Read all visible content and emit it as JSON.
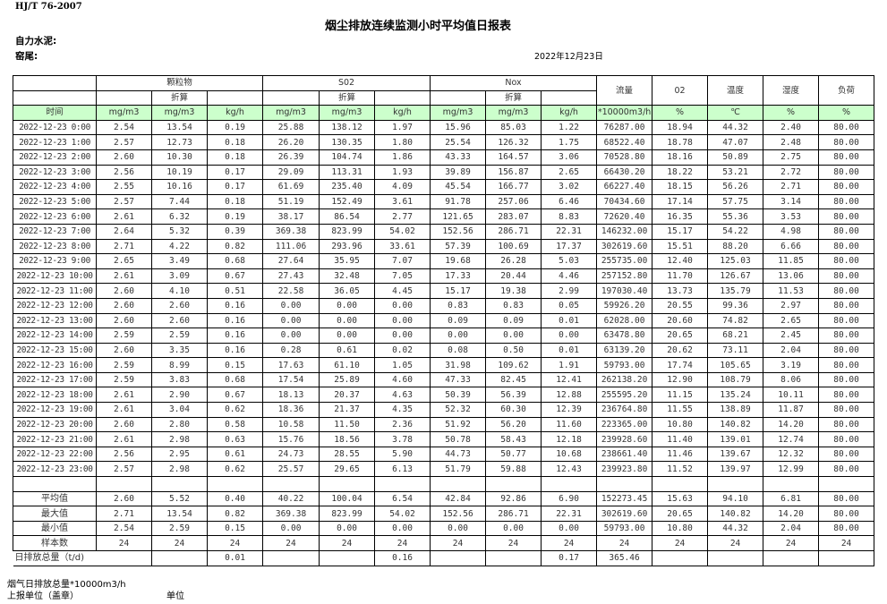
{
  "header": {
    "standard": "HJ/T  76-2007",
    "title": "烟尘排放连续监测小时平均值日报表",
    "company": "自力水泥:",
    "kiln": "窑尾:",
    "date": "2022年12月23日"
  },
  "table": {
    "groups": {
      "particulate": "颗粒物",
      "so2": "S02",
      "nox": "Nox"
    },
    "converted": "折算",
    "single_headers": [
      "流量",
      "02",
      "温度",
      "湿度",
      "负荷"
    ],
    "time_label": "时间",
    "units": [
      "mg/m3",
      "mg/m3",
      "kg/h",
      "mg/m3",
      "mg/m3",
      "kg/h",
      "mg/m3",
      "mg/m3",
      "kg/h",
      "*10000m3/h",
      "%",
      "℃",
      "%",
      "%"
    ],
    "rows": [
      [
        "2022-12-23 0:00",
        "2.54",
        "13.54",
        "0.19",
        "25.88",
        "138.12",
        "1.97",
        "15.96",
        "85.03",
        "1.22",
        "76287.00",
        "18.94",
        "44.32",
        "2.40",
        "80.00"
      ],
      [
        "2022-12-23 1:00",
        "2.57",
        "12.73",
        "0.18",
        "26.20",
        "130.35",
        "1.80",
        "25.54",
        "126.32",
        "1.75",
        "68522.40",
        "18.78",
        "47.07",
        "2.48",
        "80.00"
      ],
      [
        "2022-12-23 2:00",
        "2.60",
        "10.30",
        "0.18",
        "26.39",
        "104.74",
        "1.86",
        "43.33",
        "164.57",
        "3.06",
        "70528.80",
        "18.16",
        "50.89",
        "2.75",
        "80.00"
      ],
      [
        "2022-12-23 3:00",
        "2.56",
        "10.19",
        "0.17",
        "29.09",
        "113.31",
        "1.93",
        "39.89",
        "156.87",
        "2.65",
        "66430.20",
        "18.22",
        "53.21",
        "2.72",
        "80.00"
      ],
      [
        "2022-12-23 4:00",
        "2.55",
        "10.16",
        "0.17",
        "61.69",
        "235.40",
        "4.09",
        "45.54",
        "166.77",
        "3.02",
        "66227.40",
        "18.15",
        "56.26",
        "2.71",
        "80.00"
      ],
      [
        "2022-12-23 5:00",
        "2.57",
        "7.44",
        "0.18",
        "51.19",
        "152.49",
        "3.61",
        "91.78",
        "257.06",
        "6.46",
        "70434.60",
        "17.14",
        "57.75",
        "3.14",
        "80.00"
      ],
      [
        "2022-12-23 6:00",
        "2.61",
        "6.32",
        "0.19",
        "38.17",
        "86.54",
        "2.77",
        "121.65",
        "283.07",
        "8.83",
        "72620.40",
        "16.35",
        "55.36",
        "3.53",
        "80.00"
      ],
      [
        "2022-12-23 7:00",
        "2.64",
        "5.32",
        "0.39",
        "369.38",
        "823.99",
        "54.02",
        "152.56",
        "286.71",
        "22.31",
        "146232.00",
        "15.17",
        "54.22",
        "4.98",
        "80.00"
      ],
      [
        "2022-12-23 8:00",
        "2.71",
        "4.22",
        "0.82",
        "111.06",
        "293.96",
        "33.61",
        "57.39",
        "100.69",
        "17.37",
        "302619.60",
        "15.51",
        "88.20",
        "6.66",
        "80.00"
      ],
      [
        "2022-12-23 9:00",
        "2.65",
        "3.49",
        "0.68",
        "27.64",
        "35.95",
        "7.07",
        "19.68",
        "26.28",
        "5.03",
        "255735.00",
        "12.40",
        "125.03",
        "11.85",
        "80.00"
      ],
      [
        "2022-12-23 10:00",
        "2.61",
        "3.09",
        "0.67",
        "27.43",
        "32.48",
        "7.05",
        "17.33",
        "20.44",
        "4.46",
        "257152.80",
        "11.70",
        "126.67",
        "13.06",
        "80.00"
      ],
      [
        "2022-12-23 11:00",
        "2.60",
        "4.10",
        "0.51",
        "22.58",
        "36.05",
        "4.45",
        "15.17",
        "19.38",
        "2.99",
        "197030.40",
        "13.73",
        "135.79",
        "11.53",
        "80.00"
      ],
      [
        "2022-12-23 12:00",
        "2.60",
        "2.60",
        "0.16",
        "0.00",
        "0.00",
        "0.00",
        "0.83",
        "0.83",
        "0.05",
        "59926.20",
        "20.55",
        "99.36",
        "2.97",
        "80.00"
      ],
      [
        "2022-12-23 13:00",
        "2.60",
        "2.60",
        "0.16",
        "0.00",
        "0.00",
        "0.00",
        "0.09",
        "0.09",
        "0.01",
        "62028.00",
        "20.60",
        "74.82",
        "2.65",
        "80.00"
      ],
      [
        "2022-12-23 14:00",
        "2.59",
        "2.59",
        "0.16",
        "0.00",
        "0.00",
        "0.00",
        "0.00",
        "0.00",
        "0.00",
        "63478.80",
        "20.65",
        "68.21",
        "2.45",
        "80.00"
      ],
      [
        "2022-12-23 15:00",
        "2.60",
        "3.35",
        "0.16",
        "0.28",
        "0.61",
        "0.02",
        "0.08",
        "0.50",
        "0.01",
        "63139.20",
        "20.62",
        "73.11",
        "2.04",
        "80.00"
      ],
      [
        "2022-12-23 16:00",
        "2.59",
        "8.99",
        "0.15",
        "17.63",
        "61.10",
        "1.05",
        "31.98",
        "109.62",
        "1.91",
        "59793.00",
        "17.74",
        "105.65",
        "3.19",
        "80.00"
      ],
      [
        "2022-12-23 17:00",
        "2.59",
        "3.83",
        "0.68",
        "17.54",
        "25.89",
        "4.60",
        "47.33",
        "82.45",
        "12.41",
        "262138.20",
        "12.90",
        "108.79",
        "8.06",
        "80.00"
      ],
      [
        "2022-12-23 18:00",
        "2.61",
        "2.90",
        "0.67",
        "18.13",
        "20.37",
        "4.63",
        "50.39",
        "56.39",
        "12.88",
        "255595.20",
        "11.15",
        "135.24",
        "10.11",
        "80.00"
      ],
      [
        "2022-12-23 19:00",
        "2.61",
        "3.04",
        "0.62",
        "18.36",
        "21.37",
        "4.35",
        "52.32",
        "60.30",
        "12.39",
        "236764.80",
        "11.55",
        "138.89",
        "11.87",
        "80.00"
      ],
      [
        "2022-12-23 20:00",
        "2.60",
        "2.80",
        "0.58",
        "10.58",
        "11.50",
        "2.36",
        "51.92",
        "56.20",
        "11.60",
        "223365.00",
        "10.80",
        "140.82",
        "14.20",
        "80.00"
      ],
      [
        "2022-12-23 21:00",
        "2.61",
        "2.98",
        "0.63",
        "15.76",
        "18.56",
        "3.78",
        "50.78",
        "58.43",
        "12.18",
        "239928.60",
        "11.40",
        "139.01",
        "12.74",
        "80.00"
      ],
      [
        "2022-12-23 22:00",
        "2.56",
        "2.95",
        "0.61",
        "24.73",
        "28.55",
        "5.90",
        "44.73",
        "50.77",
        "10.68",
        "238661.40",
        "11.46",
        "139.67",
        "12.32",
        "80.00"
      ],
      [
        "2022-12-23 23:00",
        "2.57",
        "2.98",
        "0.62",
        "25.57",
        "29.65",
        "6.13",
        "51.79",
        "59.88",
        "12.43",
        "239923.80",
        "11.52",
        "139.97",
        "12.99",
        "80.00"
      ]
    ],
    "stats": [
      [
        "平均值",
        "2.60",
        "5.52",
        "0.40",
        "40.22",
        "100.04",
        "6.54",
        "42.84",
        "92.86",
        "6.90",
        "152273.45",
        "15.63",
        "94.10",
        "6.81",
        "80.00"
      ],
      [
        "最大值",
        "2.71",
        "13.54",
        "0.82",
        "369.38",
        "823.99",
        "54.02",
        "152.56",
        "286.71",
        "22.31",
        "302619.60",
        "20.65",
        "140.82",
        "14.20",
        "80.00"
      ],
      [
        "最小值",
        "2.54",
        "2.59",
        "0.15",
        "0.00",
        "0.00",
        "0.00",
        "0.00",
        "0.00",
        "0.00",
        "59793.00",
        "10.80",
        "44.32",
        "2.04",
        "80.00"
      ],
      [
        "样本数",
        "24",
        "24",
        "24",
        "24",
        "24",
        "24",
        "24",
        "24",
        "24",
        "24",
        "24",
        "24",
        "24",
        "24"
      ]
    ],
    "daily": {
      "label": "日排放总量（t/d)",
      "particulate_kgh": "0.01",
      "so2_kgh": "0.16",
      "nox_kgh": "0.17",
      "flow": "365.46"
    },
    "colors": {
      "units_row_bg": "#ccffcc"
    }
  },
  "footer": {
    "flue_gas_total": "烟气日排放总量*10000m3/h",
    "reporting_unit": "上报单位（盖章）",
    "unit": "单位"
  }
}
